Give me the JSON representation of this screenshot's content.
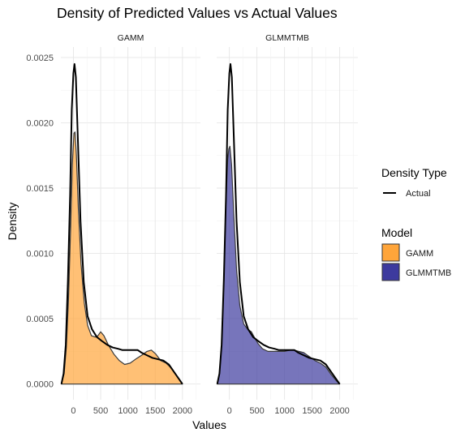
{
  "chart_data": {
    "type": "area",
    "title": "Density of Predicted Values vs Actual Values",
    "xlabel": "Values",
    "ylabel": "Density",
    "xlim": [
      -230,
      2330
    ],
    "ylim": [
      -0.00012,
      0.00258
    ],
    "x_ticks": [
      0,
      500,
      1000,
      1500,
      2000
    ],
    "x_tick_labels": [
      "0",
      "500",
      "1000",
      "1500",
      "2000"
    ],
    "y_ticks": [
      0,
      0.0005,
      0.001,
      0.0015,
      0.002,
      0.0025
    ],
    "y_tick_labels": [
      "0.0000",
      "0.0005",
      "0.0010",
      "0.0015",
      "0.0020",
      "0.0025"
    ],
    "grid": true,
    "legend_placement": "right",
    "facets": [
      {
        "label": "GAMM",
        "predicted": {
          "name": "GAMM",
          "color": "#FFA53A",
          "points": [
            [
              -220,
              0.0
            ],
            [
              -170,
              8e-05
            ],
            [
              -130,
              0.00028
            ],
            [
              -90,
              0.00065
            ],
            [
              -50,
              0.0012
            ],
            [
              -20,
              0.00168
            ],
            [
              10,
              0.00192
            ],
            [
              30,
              0.00193
            ],
            [
              55,
              0.00175
            ],
            [
              90,
              0.00135
            ],
            [
              140,
              0.00092
            ],
            [
              200,
              0.00062
            ],
            [
              260,
              0.00045
            ],
            [
              330,
              0.00037
            ],
            [
              400,
              0.00036
            ],
            [
              450,
              0.00037
            ],
            [
              500,
              0.0004
            ],
            [
              560,
              0.00037
            ],
            [
              640,
              0.0003
            ],
            [
              740,
              0.00023
            ],
            [
              840,
              0.00018
            ],
            [
              940,
              0.00015
            ],
            [
              1040,
              0.00016
            ],
            [
              1140,
              0.00019
            ],
            [
              1250,
              0.00022
            ],
            [
              1350,
              0.00025
            ],
            [
              1430,
              0.00026
            ],
            [
              1510,
              0.00023
            ],
            [
              1600,
              0.00018
            ],
            [
              1700,
              0.00016
            ],
            [
              1800,
              0.00012
            ],
            [
              1900,
              6e-05
            ],
            [
              1970,
              2e-05
            ],
            [
              2000,
              0.0
            ]
          ]
        },
        "actual": {
          "name": "Actual",
          "color": "#000000",
          "points": [
            [
              -220,
              0.0
            ],
            [
              -180,
              8e-05
            ],
            [
              -140,
              0.0003
            ],
            [
              -100,
              0.0008
            ],
            [
              -60,
              0.00145
            ],
            [
              -30,
              0.0021
            ],
            [
              0,
              0.00238
            ],
            [
              20,
              0.00245
            ],
            [
              45,
              0.00235
            ],
            [
              80,
              0.0019
            ],
            [
              130,
              0.00125
            ],
            [
              190,
              0.00078
            ],
            [
              260,
              0.00052
            ],
            [
              340,
              0.00042
            ],
            [
              430,
              0.00036
            ],
            [
              520,
              0.00033
            ],
            [
              620,
              0.0003
            ],
            [
              720,
              0.00028
            ],
            [
              820,
              0.00027
            ],
            [
              900,
              0.00026
            ],
            [
              1000,
              0.00026
            ],
            [
              1100,
              0.00026
            ],
            [
              1180,
              0.00026
            ],
            [
              1250,
              0.00024
            ],
            [
              1350,
              0.00022
            ],
            [
              1450,
              0.0002
            ],
            [
              1550,
              0.00019
            ],
            [
              1650,
              0.00018
            ],
            [
              1750,
              0.00015
            ],
            [
              1850,
              9e-05
            ],
            [
              1950,
              3e-05
            ],
            [
              2000,
              0.0
            ]
          ]
        }
      },
      {
        "label": "GLMMTMB",
        "predicted": {
          "name": "GLMMTMB",
          "color": "#3D3A9E",
          "points": [
            [
              -220,
              0.0
            ],
            [
              -180,
              8e-05
            ],
            [
              -140,
              0.0003
            ],
            [
              -100,
              0.0008
            ],
            [
              -60,
              0.0014
            ],
            [
              -30,
              0.00172
            ],
            [
              -10,
              0.0018
            ],
            [
              10,
              0.00182
            ],
            [
              40,
              0.00168
            ],
            [
              80,
              0.0013
            ],
            [
              130,
              0.00088
            ],
            [
              190,
              0.0006
            ],
            [
              260,
              0.00046
            ],
            [
              330,
              0.00042
            ],
            [
              400,
              0.0004
            ],
            [
              450,
              0.00036
            ],
            [
              520,
              0.00031
            ],
            [
              600,
              0.00027
            ],
            [
              700,
              0.00025
            ],
            [
              800,
              0.00025
            ],
            [
              900,
              0.00025
            ],
            [
              1000,
              0.00025
            ],
            [
              1100,
              0.00026
            ],
            [
              1180,
              0.00026
            ],
            [
              1260,
              0.00025
            ],
            [
              1350,
              0.00024
            ],
            [
              1450,
              0.00021
            ],
            [
              1550,
              0.00018
            ],
            [
              1650,
              0.00016
            ],
            [
              1750,
              0.00013
            ],
            [
              1850,
              7e-05
            ],
            [
              1950,
              2e-05
            ],
            [
              2000,
              0.0
            ]
          ]
        },
        "actual": {
          "name": "Actual",
          "color": "#000000",
          "points": [
            [
              -220,
              0.0
            ],
            [
              -180,
              8e-05
            ],
            [
              -140,
              0.0003
            ],
            [
              -100,
              0.0008
            ],
            [
              -60,
              0.00145
            ],
            [
              -30,
              0.0021
            ],
            [
              0,
              0.00238
            ],
            [
              20,
              0.00245
            ],
            [
              45,
              0.00235
            ],
            [
              80,
              0.0019
            ],
            [
              130,
              0.00125
            ],
            [
              190,
              0.00078
            ],
            [
              260,
              0.00052
            ],
            [
              340,
              0.00042
            ],
            [
              430,
              0.00036
            ],
            [
              520,
              0.00033
            ],
            [
              620,
              0.0003
            ],
            [
              720,
              0.00028
            ],
            [
              820,
              0.00027
            ],
            [
              900,
              0.00026
            ],
            [
              1000,
              0.00026
            ],
            [
              1100,
              0.00026
            ],
            [
              1180,
              0.00026
            ],
            [
              1250,
              0.00024
            ],
            [
              1350,
              0.00022
            ],
            [
              1450,
              0.0002
            ],
            [
              1550,
              0.00019
            ],
            [
              1650,
              0.00018
            ],
            [
              1750,
              0.00015
            ],
            [
              1850,
              9e-05
            ],
            [
              1950,
              3e-05
            ],
            [
              2000,
              0.0
            ]
          ]
        }
      }
    ],
    "legend": {
      "density_type": {
        "title": "Density Type",
        "items": [
          {
            "label": "Actual",
            "color": "#000000"
          }
        ]
      },
      "model": {
        "title": "Model",
        "items": [
          {
            "label": "GAMM",
            "color": "#FFA53A"
          },
          {
            "label": "GLMMTMB",
            "color": "#3D3A9E"
          }
        ]
      }
    }
  }
}
